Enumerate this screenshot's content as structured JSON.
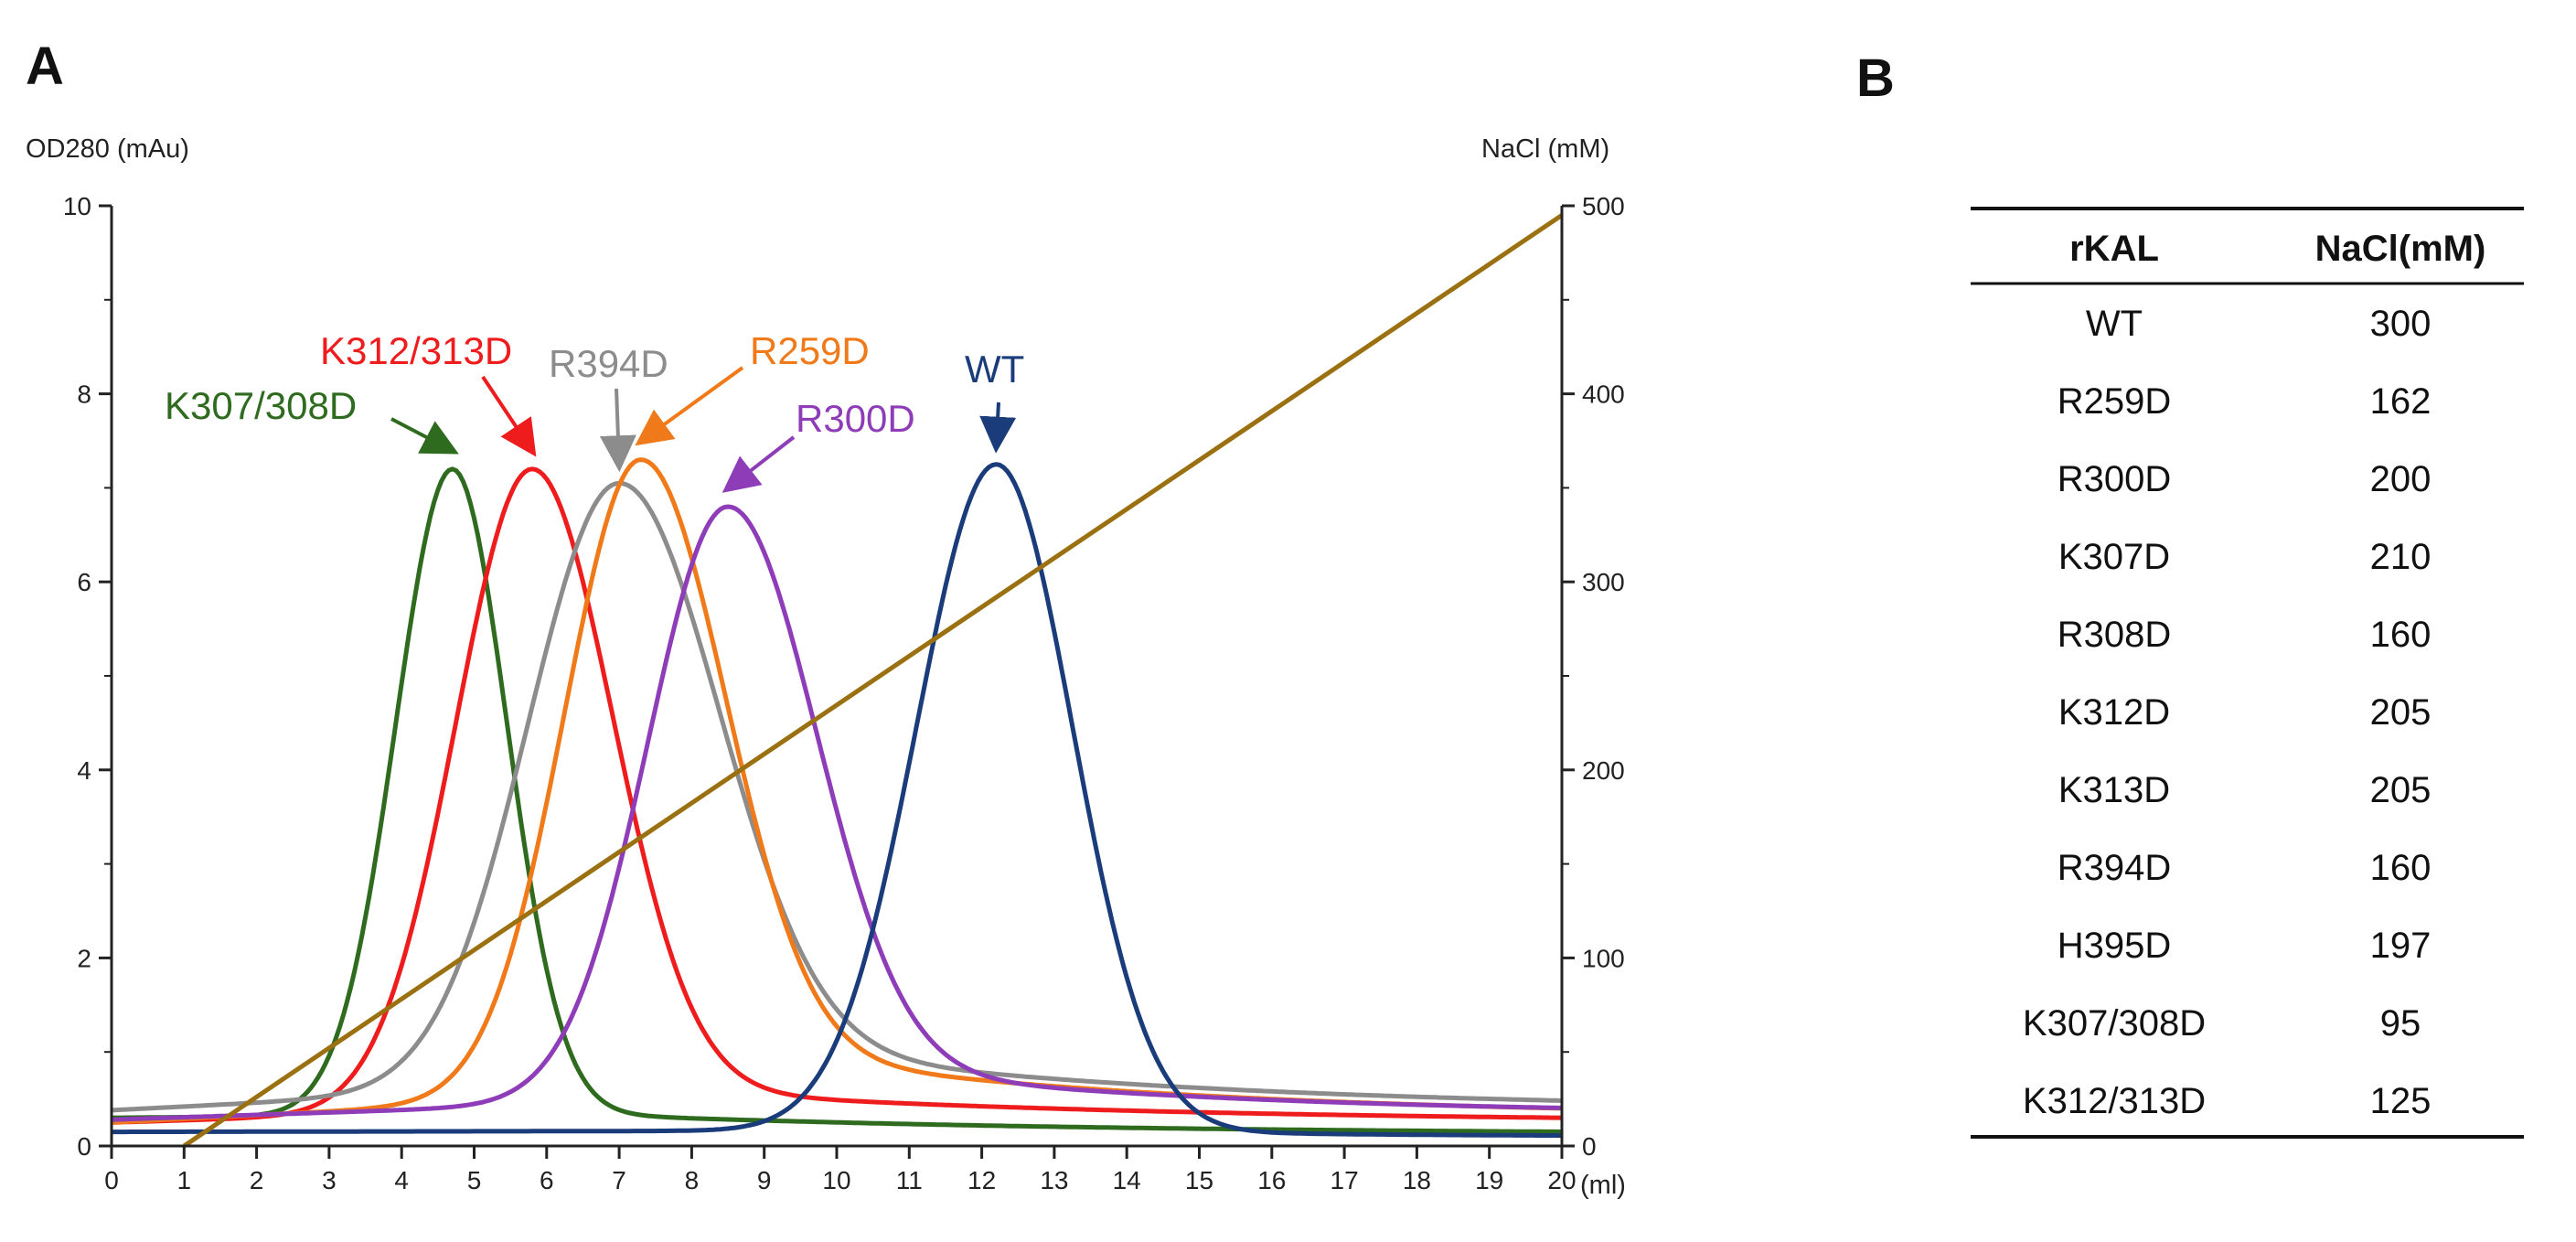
{
  "panel_a_label": "A",
  "panel_b_label": "B",
  "chart_data": {
    "type": "line",
    "title": "",
    "xlabel": "(ml)",
    "ylabel": "OD280 (mAu)",
    "y2label": "NaCl (mM)",
    "xlim": [
      0,
      20
    ],
    "ylim": [
      0,
      10
    ],
    "y2lim": [
      0,
      500
    ],
    "xticks": [
      0,
      1,
      2,
      3,
      4,
      5,
      6,
      7,
      8,
      9,
      10,
      11,
      12,
      13,
      14,
      15,
      16,
      17,
      18,
      19,
      20
    ],
    "yticks": [
      0,
      2,
      4,
      6,
      8,
      10
    ],
    "y2ticks": [
      0,
      100,
      200,
      300,
      400,
      500
    ],
    "grid": false,
    "series": [
      {
        "name": "K307/308D",
        "color": "#2e6b1f",
        "axis": "left",
        "peak": {
          "x": 4.7,
          "y": 7.2,
          "sigma_left": 0.78,
          "sigma_right": 0.75
        },
        "tail": {
          "start": 0.3,
          "mid": 0.4,
          "end": 0.12
        }
      },
      {
        "name": "K312/313D",
        "color": "#ee1c1c",
        "axis": "left",
        "peak": {
          "x": 5.8,
          "y": 7.2,
          "sigma_left": 1.05,
          "sigma_right": 1.1
        },
        "tail": {
          "start": 0.25,
          "mid": 0.7,
          "end": 0.25
        }
      },
      {
        "name": "R394D",
        "color": "#8c8c8c",
        "axis": "left",
        "peak": {
          "x": 7.0,
          "y": 7.05,
          "sigma_left": 1.25,
          "sigma_right": 1.35
        },
        "tail": {
          "start": 0.38,
          "mid": 1.3,
          "end": 0.38
        }
      },
      {
        "name": "R259D",
        "color": "#f07a1a",
        "axis": "left",
        "peak": {
          "x": 7.3,
          "y": 7.3,
          "sigma_left": 1.05,
          "sigma_right": 1.15
        },
        "tail": {
          "start": 0.25,
          "mid": 1.2,
          "end": 0.3
        }
      },
      {
        "name": "R300D",
        "color": "#8e3cb8",
        "axis": "left",
        "peak": {
          "x": 8.5,
          "y": 6.8,
          "sigma_left": 1.1,
          "sigma_right": 1.2
        },
        "tail": {
          "start": 0.28,
          "mid": 1.0,
          "end": 0.33
        }
      },
      {
        "name": "WT",
        "color": "#1a3c7a",
        "axis": "left",
        "peak": {
          "x": 12.2,
          "y": 7.25,
          "sigma_left": 1.1,
          "sigma_right": 1.05
        },
        "tail": {
          "start": 0.15,
          "mid": 0.2,
          "end": 0.1
        }
      },
      {
        "name": "NaCl gradient",
        "color": "#9a7010",
        "axis": "right",
        "x": [
          1.0,
          20.0
        ],
        "values": [
          0,
          495
        ]
      }
    ],
    "annotations": [
      {
        "text": "K307/308D",
        "color": "#2e6b1f",
        "points_to": [
          4.7,
          7.2
        ]
      },
      {
        "text": "K312/313D",
        "color": "#ee1c1c",
        "points_to": [
          5.8,
          7.2
        ]
      },
      {
        "text": "R394D",
        "color": "#8c8c8c",
        "points_to": [
          7.0,
          7.05
        ]
      },
      {
        "text": "R259D",
        "color": "#f07a1a",
        "points_to": [
          7.3,
          7.3
        ]
      },
      {
        "text": "R300D",
        "color": "#8e3cb8",
        "points_to": [
          8.5,
          6.8
        ]
      },
      {
        "text": "WT",
        "color": "#1a3c7a",
        "points_to": [
          12.2,
          7.25
        ]
      }
    ]
  },
  "table": {
    "headers": [
      "rKAL",
      "NaCl(mM)"
    ],
    "rows": [
      [
        "WT",
        "300"
      ],
      [
        "R259D",
        "162"
      ],
      [
        "R300D",
        "200"
      ],
      [
        "K307D",
        "210"
      ],
      [
        "R308D",
        "160"
      ],
      [
        "K312D",
        "205"
      ],
      [
        "K313D",
        "205"
      ],
      [
        "R394D",
        "160"
      ],
      [
        "H395D",
        "197"
      ],
      [
        "K307/308D",
        "95"
      ],
      [
        "K312/313D",
        "125"
      ]
    ]
  }
}
